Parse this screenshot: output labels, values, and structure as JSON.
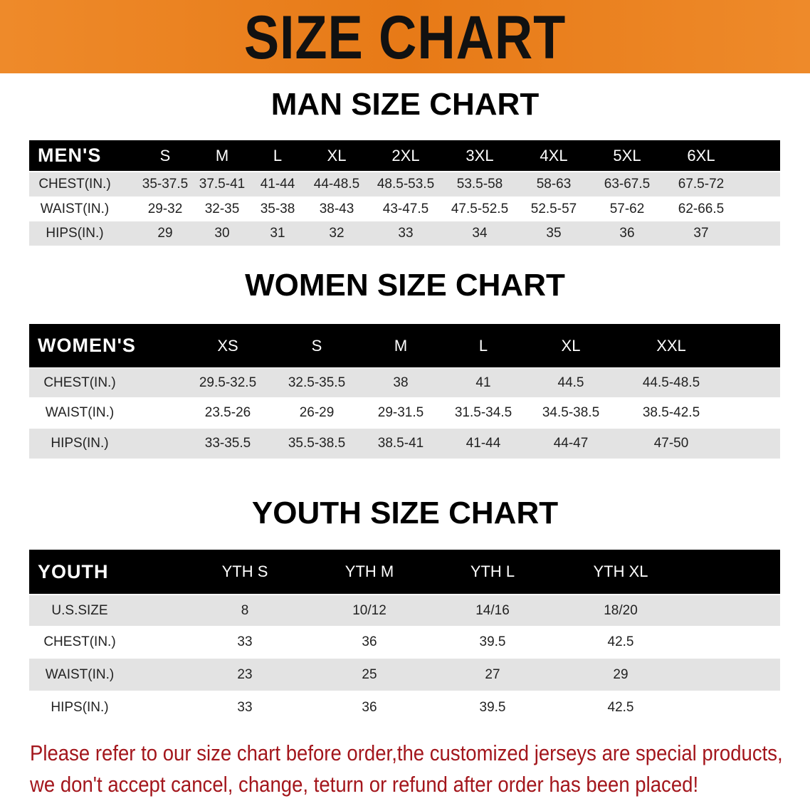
{
  "banner": {
    "title": "SIZE CHART",
    "color": "#e8801f"
  },
  "men": {
    "title": "MAN SIZE CHART",
    "header": [
      "MEN'S",
      "S",
      "M",
      "L",
      "XL",
      "2XL",
      "3XL",
      "4XL",
      "5XL",
      "6XL"
    ],
    "rows": [
      [
        "CHEST(IN.)",
        "35-37.5",
        "37.5-41",
        "41-44",
        "44-48.5",
        "48.5-53.5",
        "53.5-58",
        "58-63",
        "63-67.5",
        "67.5-72"
      ],
      [
        "WAIST(IN.)",
        "29-32",
        "32-35",
        "35-38",
        "38-43",
        "43-47.5",
        "47.5-52.5",
        "52.5-57",
        "57-62",
        "62-66.5"
      ],
      [
        "HIPS(IN.)",
        "29",
        "30",
        "31",
        "32",
        "33",
        "34",
        "35",
        "36",
        "37"
      ]
    ]
  },
  "women": {
    "title": "WOMEN SIZE CHART",
    "header": [
      "WOMEN'S",
      "XS",
      "S",
      "M",
      "L",
      "XL",
      "XXL"
    ],
    "rows": [
      [
        "CHEST(IN.)",
        "29.5-32.5",
        "32.5-35.5",
        "38",
        "41",
        "44.5",
        "44.5-48.5"
      ],
      [
        "WAIST(IN.)",
        "23.5-26",
        "26-29",
        "29-31.5",
        "31.5-34.5",
        "34.5-38.5",
        "38.5-42.5"
      ],
      [
        "HIPS(IN.)",
        "33-35.5",
        "35.5-38.5",
        "38.5-41",
        "41-44",
        "44-47",
        "47-50"
      ]
    ]
  },
  "youth": {
    "title": "YOUTH SIZE CHART",
    "header": [
      "YOUTH",
      "YTH S",
      "YTH M",
      "YTH L",
      "YTH XL"
    ],
    "rows": [
      [
        "U.S.SIZE",
        "8",
        "10/12",
        "14/16",
        "18/20"
      ],
      [
        "CHEST(IN.)",
        "33",
        "36",
        "39.5",
        "42.5"
      ],
      [
        "WAIST(IN.)",
        "23",
        "25",
        "27",
        "29"
      ],
      [
        "HIPS(IN.)",
        "33",
        "36",
        "39.5",
        "42.5"
      ]
    ]
  },
  "note": {
    "line1": "Please refer to our size chart before order,the customized jerseys are special products,",
    "line2": "we don't accept cancel, change, teturn or refund after order has been placed!",
    "color": "#a3161c"
  }
}
